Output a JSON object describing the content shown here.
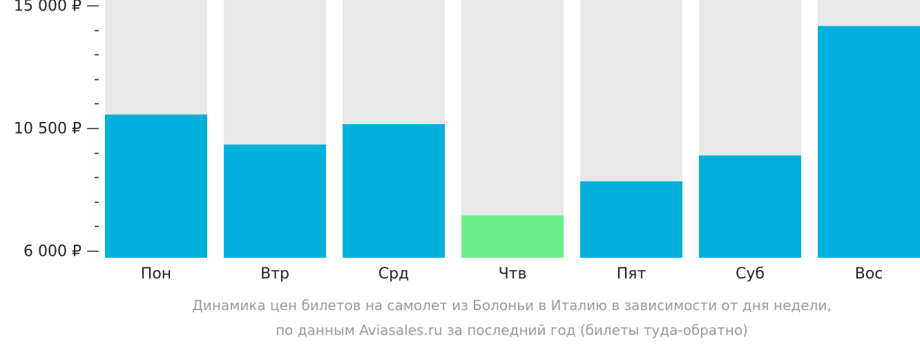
{
  "chart_data": {
    "type": "bar",
    "categories": [
      "Пон",
      "Втр",
      "Срд",
      "Чтв",
      "Пят",
      "Суб",
      "Вос"
    ],
    "values": [
      11000,
      9900,
      10650,
      7300,
      8550,
      9500,
      14250
    ],
    "highlight_index": 3,
    "ylim": [
      6000,
      15000
    ],
    "major_ticks": [
      6000,
      10500,
      15000
    ],
    "minor_step": 900,
    "y_tick_labels": [
      "6 000 ₽",
      "10 500 ₽",
      "15 000 ₽"
    ],
    "title": "",
    "xlabel": "",
    "ylabel": "",
    "colors": {
      "bar": "#00b0dc",
      "highlight": "#6aef88",
      "track": "#e8e8e8",
      "axis": "#222222"
    }
  },
  "caption": {
    "line1": "Динамика цен билетов на самолет из Болоньи в Италию в зависимости от дня недели,",
    "line2": "по данным Aviasales.ru за последний год (билеты туда-обратно)"
  }
}
